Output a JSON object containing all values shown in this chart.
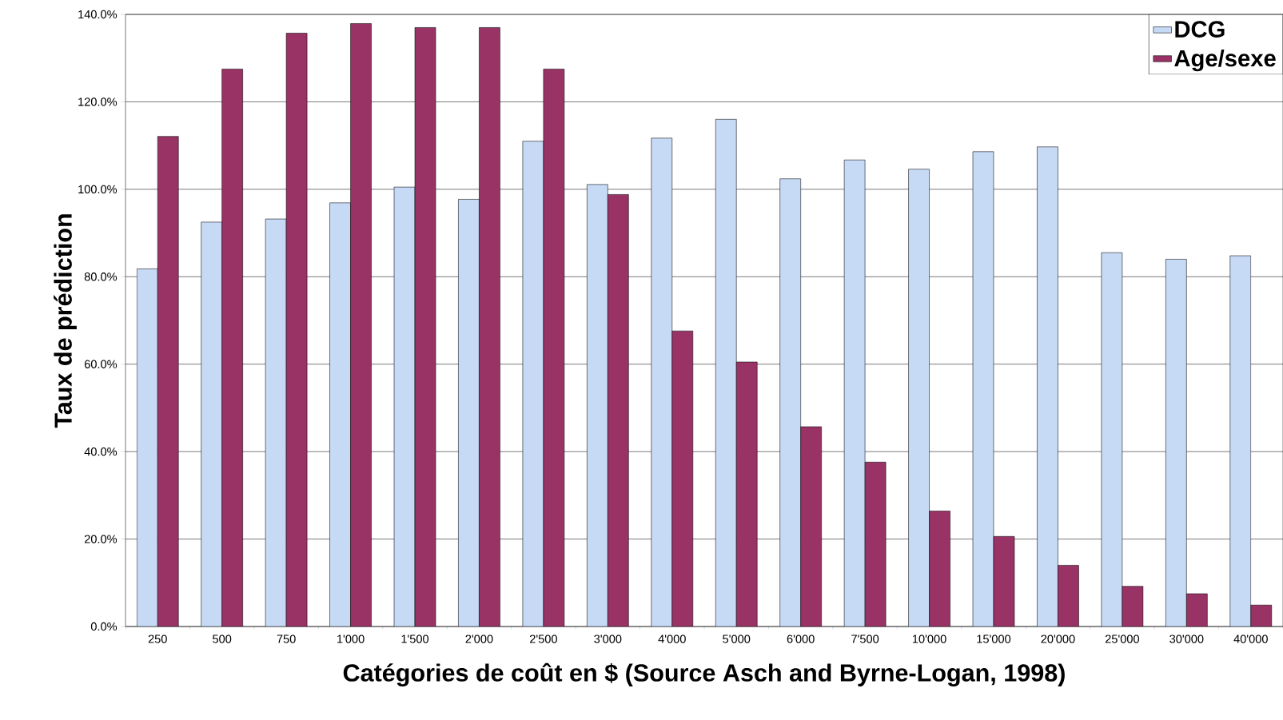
{
  "chart_data": {
    "type": "bar",
    "xlabel": "Catégories de coût en $ (Source Asch and Byrne-Logan, 1998)",
    "ylabel": "Taux de prédiction",
    "categories": [
      "250",
      "500",
      "750",
      "1'000",
      "1'500",
      "2'000",
      "2'500",
      "3'000",
      "4'000",
      "5'000",
      "6'000",
      "7'500",
      "10'000",
      "15'000",
      "20'000",
      "25'000",
      "30'000",
      "40'000"
    ],
    "series": [
      {
        "name": "DCG",
        "color": "#c6d9f5",
        "values": [
          81.8,
          92.5,
          93.2,
          96.9,
          100.5,
          97.7,
          111.0,
          101.1,
          111.7,
          116.0,
          102.4,
          106.7,
          104.6,
          108.6,
          109.7,
          85.5,
          84.0,
          84.8
        ]
      },
      {
        "name": "Age/sexe",
        "color": "#993366",
        "values": [
          112.1,
          127.5,
          135.7,
          137.9,
          137.0,
          137.0,
          127.5,
          98.8,
          67.6,
          60.5,
          45.7,
          37.6,
          26.4,
          20.6,
          14.0,
          9.2,
          7.5,
          4.9
        ]
      }
    ],
    "ylim": [
      0,
      140
    ],
    "yticks": [
      {
        "value": 0,
        "label": "0.0%"
      },
      {
        "value": 20,
        "label": "20.0%"
      },
      {
        "value": 40,
        "label": "40.0%"
      },
      {
        "value": 60,
        "label": "60.0%"
      },
      {
        "value": 80,
        "label": "80.0%"
      },
      {
        "value": 100,
        "label": "100.0%"
      },
      {
        "value": 120,
        "label": "120.0%"
      },
      {
        "value": 140,
        "label": "140.0%"
      }
    ],
    "grid": "y",
    "legend": "top right"
  }
}
